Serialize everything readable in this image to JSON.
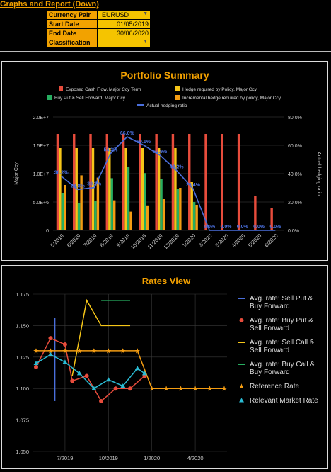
{
  "sheet": {
    "title": "Graphs and Report (Down)",
    "params": [
      {
        "label": "Currency Pair",
        "value": "EURUSD",
        "dropdown": true
      },
      {
        "label": "Start Date",
        "value": "01/05/2019",
        "dropdown": false
      },
      {
        "label": "End Date",
        "value": "30/06/2020",
        "dropdown": false
      },
      {
        "label": "Classification",
        "value": "",
        "dropdown": true
      }
    ]
  },
  "colors": {
    "exposed": "#e74c3c",
    "hedge_req": "#f5c518",
    "buy_put": "#27ae60",
    "incremental": "#f39c12",
    "hedge_ratio": "#4a6fdc",
    "title": "#f2a000",
    "sell_put": "#4a6fdc",
    "buy_put_rate": "#e74c3c",
    "sell_call": "#f5c518",
    "buy_call": "#27ae60",
    "reference": "#f39c12",
    "market": "#2bbcd4"
  },
  "chart_data": [
    {
      "type": "bar",
      "title": "Portfolio Summary",
      "categories": [
        "5/2019",
        "6/2019",
        "7/2019",
        "8/2019",
        "9/2019",
        "10/2019",
        "11/2019",
        "12/2019",
        "1/2020",
        "2/2020",
        "3/2020",
        "4/2020",
        "5/2020",
        "6/2020"
      ],
      "ylabel": "Major Ccy",
      "y2label": "Actual hedging ratio",
      "ylim": [
        0,
        20000000
      ],
      "y2lim": [
        0,
        80
      ],
      "yticks": [
        "0",
        "5.0E+6",
        "1.0E+7",
        "1.5E+7",
        "2.0E+7"
      ],
      "y2ticks": [
        "0.0%",
        "20.0%",
        "40.0%",
        "60.0%",
        "80.0%"
      ],
      "legend_position": "top",
      "grid": true,
      "series": [
        {
          "name": "Exposed Cash Flow, Major Ccy Term",
          "kind": "bar",
          "color_key": "exposed",
          "values": [
            17000000,
            17000000,
            17000000,
            17000000,
            17000000,
            17000000,
            17000000,
            17000000,
            17000000,
            17000000,
            17000000,
            17000000,
            6000000,
            4000000
          ]
        },
        {
          "name": "Hedge required by Policy, Major Ccy",
          "kind": "bar",
          "color_key": "hedge_req",
          "values": [
            14500000,
            14500000,
            14500000,
            14500000,
            14500000,
            14500000,
            14500000,
            14500000,
            8500000,
            0,
            0,
            0,
            0,
            0
          ]
        },
        {
          "name": "Buy Put & Sell Forward, Major Ccy",
          "kind": "bar",
          "color_key": "buy_put",
          "values": [
            6500000,
            4800000,
            5200000,
            9200000,
            11200000,
            10100000,
            9000000,
            7300000,
            5000000,
            0,
            0,
            0,
            0,
            0
          ]
        },
        {
          "name": "Incremental hedge required by policy, Major Ccy",
          "kind": "bar",
          "color_key": "incremental",
          "values": [
            8000000,
            9700000,
            9300000,
            5300000,
            3300000,
            4400000,
            5500000,
            7500000,
            4500000,
            0,
            0,
            0,
            0,
            0
          ]
        },
        {
          "name": "Actual hedging ratio",
          "kind": "line",
          "axis": "right",
          "color_key": "hedge_ratio",
          "values": [
            38.2,
            28.8,
            30.2,
            54.3,
            66.0,
            60.1,
            52.9,
            42.2,
            29.4,
            0.0,
            0.0,
            0.0,
            0.0,
            0.0
          ],
          "labels": [
            "38.2%",
            "28.8%",
            "30.2%",
            "54.3%",
            "66.0%",
            "60.1%",
            "52.9%",
            "42.2%",
            "29.4%",
            "0.0%",
            "0.0%",
            "0.0%",
            "0.0%",
            "0.0%"
          ]
        }
      ]
    },
    {
      "type": "line",
      "title": "Rates View",
      "x_tick_labels": [
        "7/2019",
        "10/2019",
        "1/2020",
        "4/2020"
      ],
      "x_tick_positions": [
        2,
        5,
        8,
        11
      ],
      "xlim": [
        0,
        13
      ],
      "ylim": [
        1.05,
        1.175
      ],
      "yticks": [
        "1.050",
        "1.075",
        "1.100",
        "1.125",
        "1.150",
        "1.175"
      ],
      "legend_position": "right",
      "grid": true,
      "series": [
        {
          "name": "Avg. rate:  Sell Put & Buy Forward",
          "color_key": "sell_put",
          "marker": "none",
          "points": [
            [
              1.3,
              1.09
            ],
            [
              1.3,
              1.156
            ]
          ]
        },
        {
          "name": "Avg. rate: Buy Put & Sell Forward",
          "color_key": "buy_put_rate",
          "marker": "circle",
          "points": [
            [
              0,
              1.117
            ],
            [
              1,
              1.14
            ],
            [
              2,
              1.135
            ],
            [
              2.5,
              1.106
            ],
            [
              3.5,
              1.11
            ],
            [
              4.5,
              1.09
            ],
            [
              5.5,
              1.1
            ],
            [
              6.5,
              1.1
            ],
            [
              7.5,
              1.11
            ]
          ]
        },
        {
          "name": "Avg. rate: Sell Call & Sell Forward",
          "color_key": "sell_call",
          "marker": "none",
          "points": [
            [
              2.5,
              1.11
            ],
            [
              3.5,
              1.17
            ],
            [
              4.5,
              1.15
            ],
            [
              6.5,
              1.15
            ]
          ]
        },
        {
          "name": "Avg. rate: Buy Call & Buy Forward",
          "color_key": "buy_call",
          "marker": "none",
          "points": [
            [
              4.5,
              1.17
            ],
            [
              6.5,
              1.17
            ]
          ]
        },
        {
          "name": "Reference Rate",
          "color_key": "reference",
          "marker": "star",
          "points": [
            [
              0,
              1.13
            ],
            [
              1,
              1.13
            ],
            [
              2,
              1.13
            ],
            [
              3,
              1.13
            ],
            [
              4,
              1.13
            ],
            [
              5,
              1.13
            ],
            [
              6,
              1.13
            ],
            [
              7,
              1.13
            ],
            [
              8,
              1.1
            ],
            [
              9,
              1.1
            ],
            [
              10,
              1.1
            ],
            [
              11,
              1.1
            ],
            [
              12,
              1.1
            ],
            [
              13,
              1.1
            ]
          ]
        },
        {
          "name": "Relevant Market Rate",
          "color_key": "market",
          "marker": "triangle",
          "points": [
            [
              0,
              1.12
            ],
            [
              1,
              1.127
            ],
            [
              2,
              1.121
            ],
            [
              3,
              1.112
            ],
            [
              4,
              1.1
            ],
            [
              5,
              1.107
            ],
            [
              6,
              1.102
            ],
            [
              7,
              1.116
            ],
            [
              7.5,
              1.112
            ]
          ]
        }
      ]
    }
  ]
}
